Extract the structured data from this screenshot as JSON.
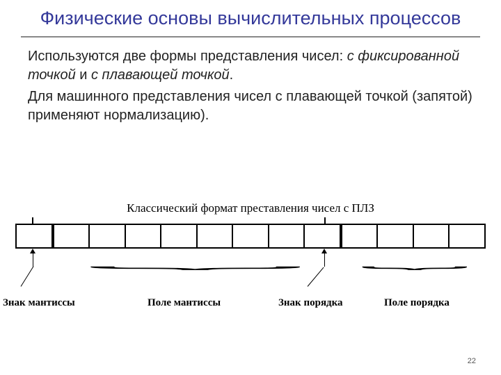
{
  "title": "Физические основы вычислительных процессов",
  "title_color": "#34399a",
  "title_fontsize": 27,
  "underline_color": "#888888",
  "paragraph1_pre": "Используются две формы представления чисел: ",
  "paragraph1_em1": "с фиксированной точкой",
  "paragraph1_mid": " и ",
  "paragraph1_em2": "с плавающей точкой",
  "paragraph1_post": ".",
  "paragraph2": "Для машинного представления чисел с плавающей точкой (запятой) применяют нормализацию).",
  "body_fontsize": 20,
  "body_color": "#222222",
  "diagram": {
    "title": "Классический формат преставления чисел с ПЛЗ",
    "title_fontsize": 17,
    "cells_total": 13,
    "cell_border_color": "#000000",
    "thick_after": [
      0,
      8
    ],
    "label_mantissa_sign": "Знак мантиссы",
    "label_mantissa_field": "Поле мантиссы",
    "label_order_sign": "Знак порядка",
    "label_order_field": "Поле порядка",
    "label_fontsize": 15,
    "label_font_family": "Times New Roman"
  },
  "page_number": "22"
}
